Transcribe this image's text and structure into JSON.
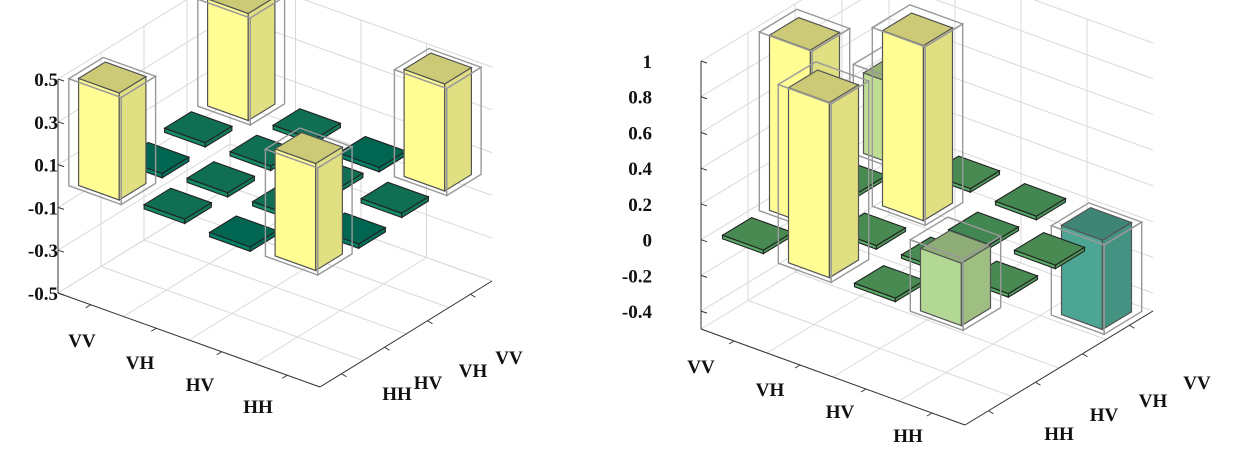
{
  "chart_data": [
    {
      "type": "bar3d",
      "row_labels": [
        "HH",
        "HV",
        "VH",
        "VV"
      ],
      "col_labels": [
        "HH",
        "HV",
        "VH",
        "VV"
      ],
      "zlim": [
        -0.5,
        0.5
      ],
      "z_ticks": [
        "0.5",
        "0.3",
        "0.1",
        "-0.1",
        "-0.3",
        "-0.5"
      ],
      "z_tick_values": [
        0.5,
        0.3,
        0.1,
        -0.1,
        -0.3,
        -0.5
      ],
      "values": [
        [
          0.5,
          0.02,
          -0.02,
          0.5
        ],
        [
          0.02,
          0.02,
          0.02,
          0.02
        ],
        [
          -0.02,
          0.02,
          0.02,
          -0.02
        ],
        [
          0.5,
          0.02,
          -0.02,
          0.5
        ]
      ],
      "ideal_values": [
        [
          0.5,
          0,
          0,
          0.5
        ],
        [
          0,
          0,
          0,
          0
        ],
        [
          0,
          0,
          0,
          0
        ],
        [
          0.5,
          0,
          0,
          0.5
        ]
      ],
      "grid": true
    },
    {
      "type": "bar3d",
      "row_labels": [
        "HH",
        "HV",
        "VH",
        "VV"
      ],
      "col_labels": [
        "HH",
        "HV",
        "VH",
        "VV"
      ],
      "zlim": [
        -0.5,
        1
      ],
      "z_ticks": [
        "1",
        "0.8",
        "0.6",
        "0.4",
        "0.2",
        "0",
        "-0.2",
        "-0.4"
      ],
      "z_tick_values": [
        1,
        0.8,
        0.6,
        0.4,
        0.2,
        0,
        -0.2,
        -0.4
      ],
      "values": [
        [
          0.45,
          0.02,
          0.98,
          0.02
        ],
        [
          0.02,
          0.98,
          0.02,
          0.98
        ],
        [
          -0.02,
          -0.02,
          0.02,
          0.02
        ],
        [
          -0.5,
          0.02,
          0.02,
          0.35
        ]
      ],
      "ideal_values": [
        [
          0.5,
          0,
          1,
          0
        ],
        [
          0,
          1,
          0,
          1
        ],
        [
          0,
          0,
          0,
          0
        ],
        [
          -0.5,
          0,
          0,
          0.4
        ]
      ],
      "grid": true
    }
  ]
}
